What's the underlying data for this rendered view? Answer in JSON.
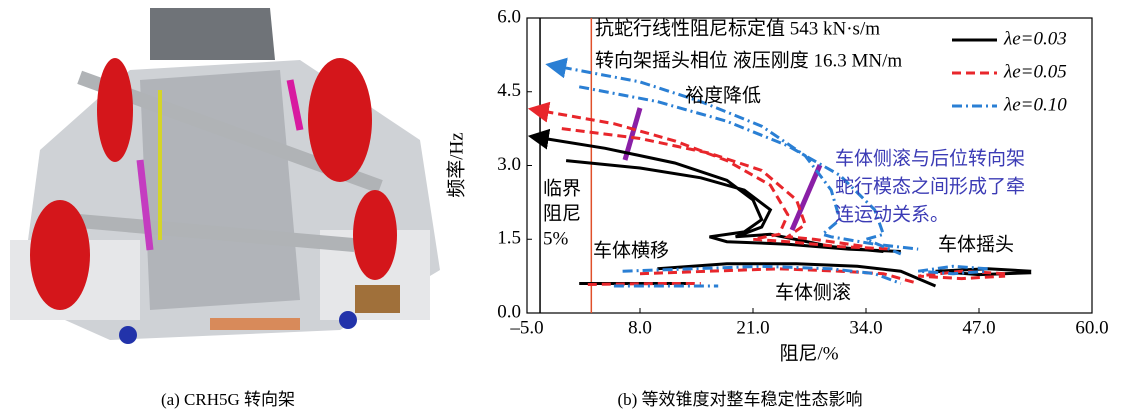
{
  "captions": {
    "a": "(a) CRH5G 转向架",
    "b": "(b) 等效锥度对整车稳定性态影响"
  },
  "chart_data": {
    "type": "line",
    "x_label": "阻尼/%",
    "y_label": "频率/Hz",
    "xlim": [
      -5,
      60
    ],
    "ylim": [
      0,
      6
    ],
    "xticks": [
      {
        "value": -5,
        "label": "–5.0"
      },
      {
        "value": 8,
        "label": "8.0"
      },
      {
        "value": 21,
        "label": "21.0"
      },
      {
        "value": 34,
        "label": "34.0"
      },
      {
        "value": 47,
        "label": "47.0"
      },
      {
        "value": 60,
        "label": "60.0"
      }
    ],
    "yticks": [
      {
        "value": 0,
        "label": "0.0"
      },
      {
        "value": 1.5,
        "label": "1.5"
      },
      {
        "value": 3,
        "label": "3.0"
      },
      {
        "value": 4.5,
        "label": "4.5"
      },
      {
        "value": 6,
        "label": "6.0"
      }
    ],
    "legend": "upper right",
    "vlines": [
      {
        "x": -3.5,
        "color": "#000000"
      },
      {
        "x": 2.4,
        "color": "#e0502a"
      }
    ],
    "annotations": [
      "抗蛇行线性阻尼标定值 543 kN·s/m",
      "转向架摇头相位 液压刚度 16.3 MN/m",
      "裕度降低",
      "车体侧滚与后位转向架",
      "蛇行模态之间形成了牵",
      "连运动关系。",
      "临界",
      "阻尼",
      "5%",
      "车体横移",
      "车体侧滚",
      "车体摇头"
    ],
    "series": [
      {
        "name": "λe=0.03",
        "color": "#000000",
        "linestyle": "solid",
        "x": [
          -3,
          4,
          12,
          18,
          21,
          22,
          20,
          16,
          18,
          25,
          32,
          38,
          null,
          -0.5,
          8,
          15,
          20,
          23,
          22,
          19,
          23,
          30,
          36,
          null,
          1,
          8,
          14,
          null,
          10,
          18,
          26,
          33,
          38,
          42,
          null,
          53,
          48,
          42,
          47,
          53
        ],
        "values": [
          3.55,
          3.35,
          3.05,
          2.7,
          2.3,
          1.9,
          1.65,
          1.55,
          1.45,
          1.4,
          1.3,
          1.25,
          null,
          3.1,
          2.95,
          2.75,
          2.5,
          2.1,
          1.75,
          1.55,
          1.6,
          1.35,
          1.25,
          null,
          0.6,
          0.6,
          0.6,
          null,
          0.9,
          1.0,
          1.0,
          0.95,
          0.85,
          0.55,
          null,
          0.85,
          0.9,
          0.85,
          0.78,
          0.82
        ]
      },
      {
        "name": "λe=0.05",
        "color": "#e8262b",
        "linestyle": "dashed",
        "x": [
          -3,
          5,
          12,
          18,
          23,
          25,
          24,
          21,
          25,
          31,
          37,
          null,
          -1,
          8,
          16,
          22,
          26,
          27,
          25,
          28,
          34,
          null,
          2,
          10,
          15,
          null,
          8,
          16,
          24,
          31,
          36,
          40,
          null,
          50,
          45,
          40,
          45,
          50
        ],
        "values": [
          4.1,
          3.85,
          3.5,
          3.1,
          2.6,
          2.0,
          1.6,
          1.5,
          1.45,
          1.35,
          1.3,
          null,
          3.75,
          3.55,
          3.25,
          2.9,
          2.3,
          1.8,
          1.55,
          1.5,
          1.35,
          null,
          0.58,
          0.6,
          0.6,
          null,
          0.8,
          0.85,
          0.9,
          0.85,
          0.8,
          0.6,
          null,
          0.8,
          0.85,
          0.75,
          0.7,
          0.75
        ]
      },
      {
        "name": "λe=0.10",
        "color": "#2a7fd4",
        "linestyle": "dashdot",
        "x": [
          -1,
          8,
          15,
          22,
          27,
          30,
          31,
          29,
          30,
          35,
          40,
          null,
          1,
          10,
          18,
          25,
          31,
          35,
          36,
          34,
          38,
          null,
          5,
          12,
          17,
          null,
          6,
          14,
          22,
          30,
          35,
          38,
          null,
          48,
          44,
          40,
          44,
          48
        ],
        "values": [
          5.0,
          4.7,
          4.3,
          3.8,
          3.2,
          2.5,
          1.9,
          1.6,
          1.55,
          1.4,
          1.3,
          null,
          4.6,
          4.3,
          3.9,
          3.4,
          2.8,
          2.1,
          1.6,
          1.5,
          1.2,
          null,
          0.55,
          0.55,
          0.55,
          null,
          0.85,
          0.9,
          0.95,
          0.9,
          0.8,
          0.6,
          null,
          0.9,
          0.95,
          0.85,
          0.8,
          0.85
        ]
      }
    ]
  }
}
